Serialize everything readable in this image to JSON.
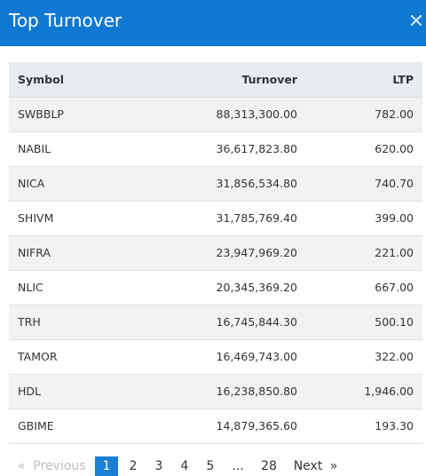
{
  "header": {
    "title": "Top Turnover",
    "close_icon": "close-icon"
  },
  "table": {
    "columns": [
      "Symbol",
      "Turnover",
      "LTP"
    ],
    "rows": [
      [
        "SWBBLP",
        "88,313,300.00",
        "782.00"
      ],
      [
        "NABIL",
        "36,617,823.80",
        "620.00"
      ],
      [
        "NICA",
        "31,856,534.80",
        "740.70"
      ],
      [
        "SHIVM",
        "31,785,769.40",
        "399.00"
      ],
      [
        "NIFRA",
        "23,947,969.20",
        "221.00"
      ],
      [
        "NLIC",
        "20,345,369.20",
        "667.00"
      ],
      [
        "TRH",
        "16,745,844.30",
        "500.10"
      ],
      [
        "TAMOR",
        "16,469,743.00",
        "322.00"
      ],
      [
        "HDL",
        "16,238,850.80",
        "1,946.00"
      ],
      [
        "GBIME",
        "14,879,365.60",
        "193.30"
      ]
    ]
  },
  "pagination": {
    "prev_arrow": "«",
    "prev_label": "Previous",
    "pages": [
      "1",
      "2",
      "3",
      "4",
      "5"
    ],
    "ellipsis": "...",
    "last": "28",
    "next_label": "Next",
    "next_arrow": "»",
    "active_page": "1"
  },
  "colors": {
    "header_bg": "#0f78d2",
    "active_page_bg": "#1b7fd6"
  }
}
